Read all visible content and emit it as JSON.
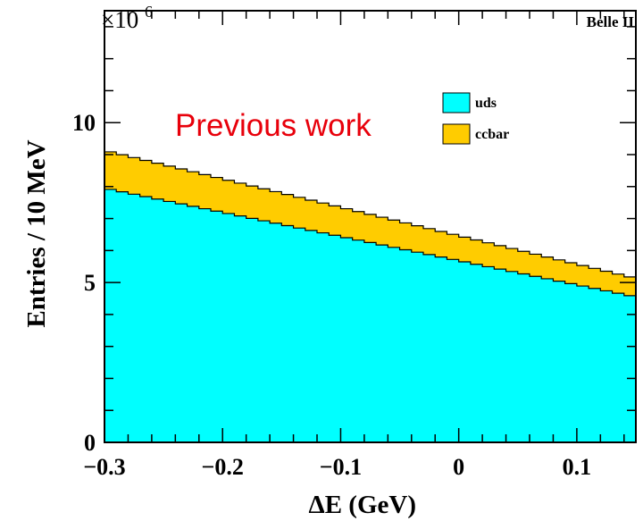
{
  "chart_data": {
    "type": "area",
    "stacked": true,
    "xlabel": "ΔE (GeV)",
    "ylabel": "Entries / 10 MeV",
    "xlim": [
      -0.3,
      0.15
    ],
    "ylim": [
      0,
      13.5
    ],
    "y_multiplier_label": "×10",
    "y_multiplier_exp": "6",
    "bin_width": 0.01,
    "x_ticks": [
      -0.3,
      -0.2,
      -0.1,
      0,
      0.1
    ],
    "x_tick_labels": [
      "−0.3",
      "−0.2",
      "−0.1",
      "0",
      "0.1"
    ],
    "y_ticks": [
      0,
      5,
      10
    ],
    "y_tick_labels": [
      "0",
      "5",
      "10"
    ],
    "series": [
      {
        "name": "uds",
        "color": "#00ffff",
        "start": 7.95,
        "end": 4.55
      },
      {
        "name": "ccbar",
        "color": "#ffcc00",
        "start": 1.18,
        "end": 0.58
      }
    ],
    "legend": {
      "position": "top-right",
      "entries": [
        "uds",
        "ccbar"
      ]
    },
    "annotation": "Previous work",
    "corner_label": "Belle II"
  }
}
